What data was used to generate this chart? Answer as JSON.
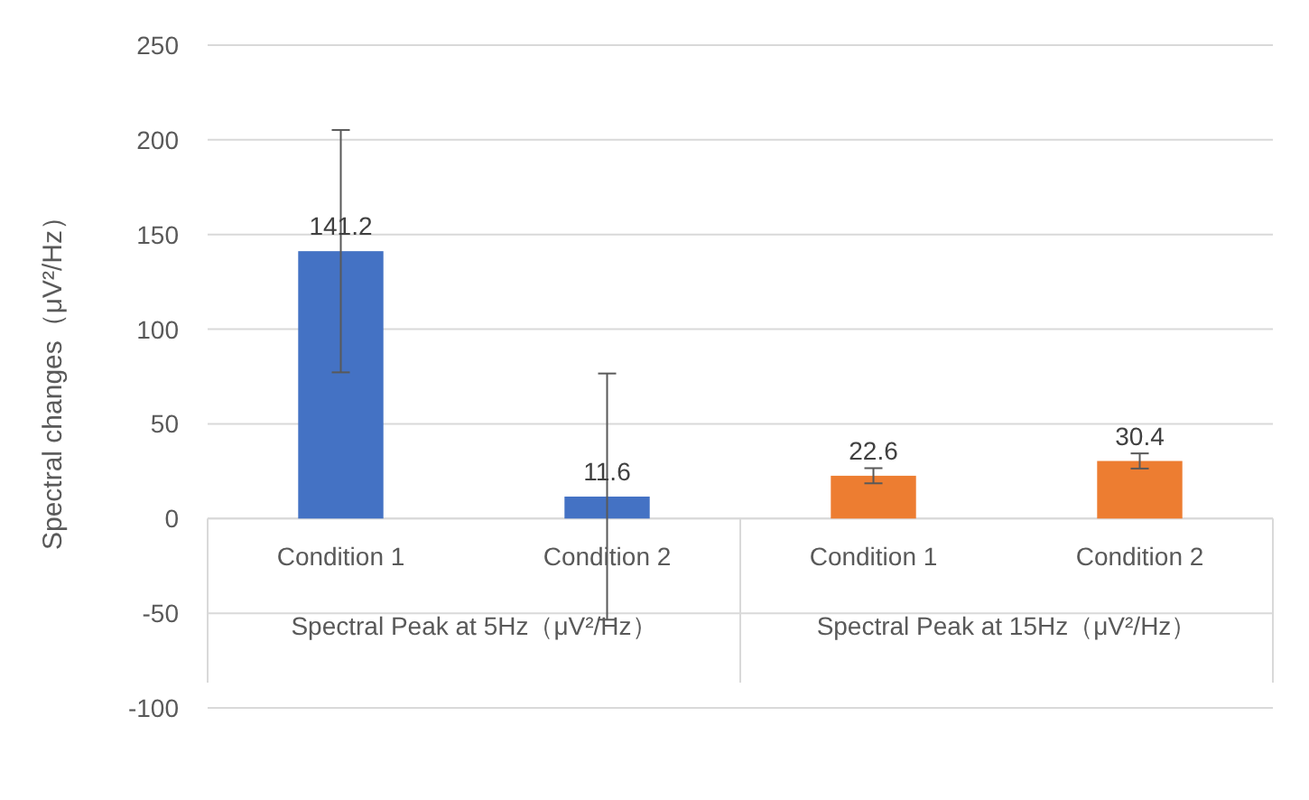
{
  "chart_data": {
    "type": "bar",
    "ylabel": "Spectral changes（μV²/Hz）",
    "categories": [
      "Condition 1",
      "Condition 2",
      "Condition 1",
      "Condition 2"
    ],
    "values": [
      141.2,
      11.6,
      22.6,
      30.4
    ],
    "colors": [
      "#4472c4",
      "#4472c4",
      "#ed7d31",
      "#ed7d31"
    ],
    "errors": [
      64,
      65,
      4,
      4
    ],
    "data_labels": true,
    "annotations": [
      "Spectral Peak at 5Hz（μV²/Hz）",
      "Spectral Peak at 15Hz（μV²/Hz）"
    ],
    "ylim": [
      -100,
      250
    ],
    "yticks": [
      -100,
      -50,
      0,
      50,
      100,
      150,
      200,
      250
    ],
    "grid": "y"
  }
}
